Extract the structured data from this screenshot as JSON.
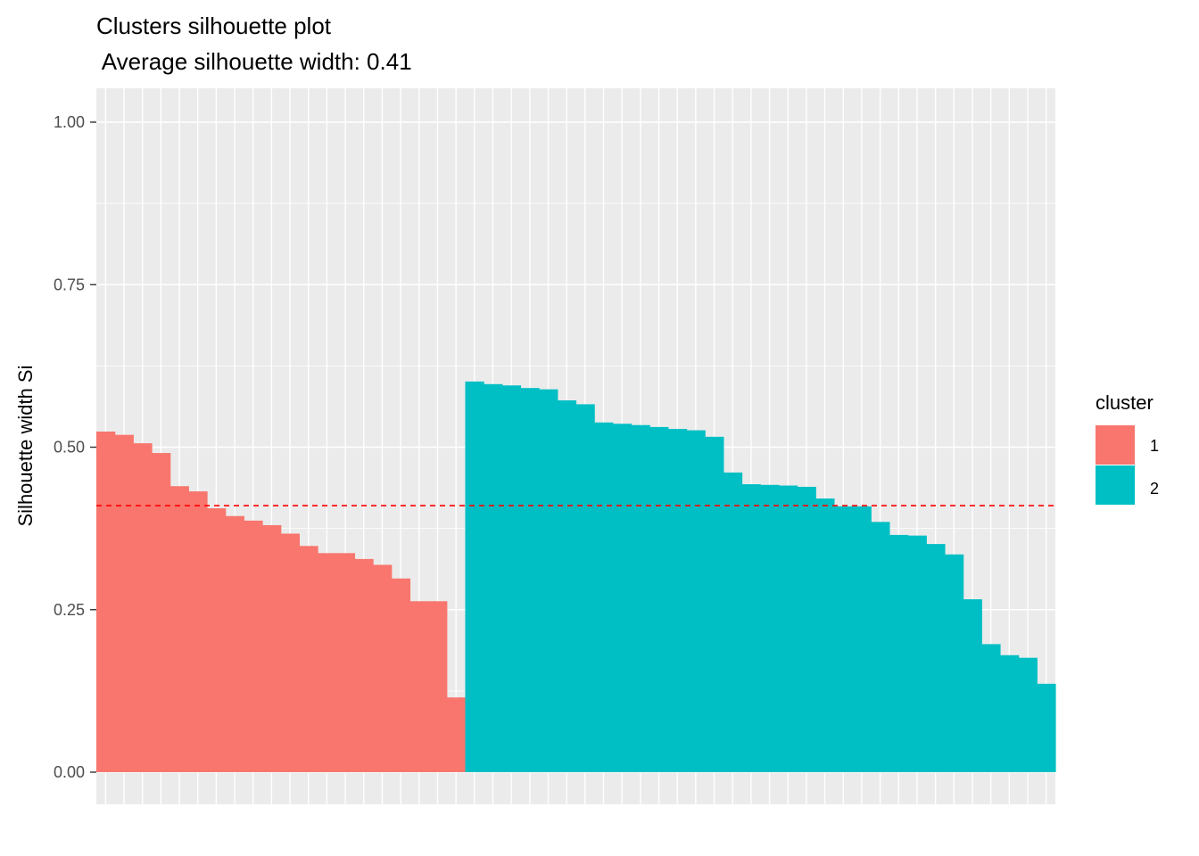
{
  "chart_data": {
    "type": "bar",
    "title": "Clusters silhouette plot",
    "subtitle": " Average silhouette width: 0.41",
    "xlabel": "",
    "ylabel": "Silhouette width Si",
    "ylim": [
      0,
      1.05
    ],
    "yticks": [
      0.0,
      0.25,
      0.5,
      0.75,
      1.0
    ],
    "ytick_labels": [
      "0.00",
      "0.25",
      "0.50",
      "0.75",
      "1.00"
    ],
    "grid": true,
    "legend_position": "right",
    "legend_title": "cluster",
    "reference_line": {
      "value": 0.41,
      "color": "#FF0000",
      "style": "dashed"
    },
    "series": [
      {
        "name": "1",
        "color": "#F8766D",
        "values": [
          0.524,
          0.519,
          0.506,
          0.491,
          0.44,
          0.432,
          0.406,
          0.394,
          0.387,
          0.38,
          0.367,
          0.348,
          0.337,
          0.337,
          0.328,
          0.319,
          0.298,
          0.263,
          0.263,
          0.115
        ]
      },
      {
        "name": "2",
        "color": "#00BFC4",
        "values": [
          0.601,
          0.597,
          0.595,
          0.591,
          0.589,
          0.572,
          0.566,
          0.538,
          0.536,
          0.534,
          0.531,
          0.528,
          0.526,
          0.516,
          0.461,
          0.443,
          0.442,
          0.441,
          0.439,
          0.421,
          0.409,
          0.409,
          0.385,
          0.365,
          0.364,
          0.351,
          0.335,
          0.266,
          0.197,
          0.18,
          0.176,
          0.136
        ]
      }
    ]
  }
}
